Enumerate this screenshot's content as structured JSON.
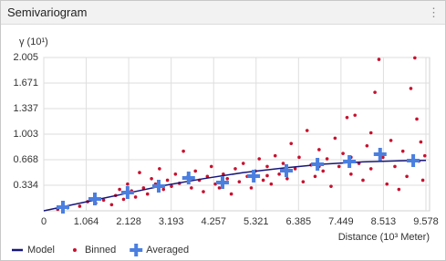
{
  "chart_data": {
    "type": "scatter",
    "title": "Semivariogram",
    "y_label": "γ (10¹)",
    "x_label": "Distance (10³ Meter)",
    "xlim": [
      0,
      9.578
    ],
    "ylim": [
      0,
      2.005
    ],
    "xticks": [
      0,
      1.064,
      2.128,
      3.193,
      4.257,
      5.321,
      6.385,
      7.449,
      8.513,
      9.578
    ],
    "yticks": [
      0.334,
      0.668,
      1.003,
      1.337,
      1.671,
      2.005
    ],
    "grid": true,
    "legend": "bottom-left",
    "series": [
      {
        "name": "Model",
        "kind": "line",
        "color": "#16167a",
        "x": [
          0,
          1,
          2,
          3,
          4,
          5,
          6,
          7,
          8,
          9,
          9.578
        ],
        "values": [
          0,
          0.11,
          0.22,
          0.33,
          0.42,
          0.5,
          0.56,
          0.61,
          0.64,
          0.655,
          0.66
        ]
      },
      {
        "name": "Binned",
        "kind": "dot",
        "color": "#c8102e",
        "x": [
          0.35,
          0.6,
          0.9,
          1.1,
          1.3,
          1.5,
          1.7,
          1.8,
          1.9,
          2.0,
          2.1,
          2.2,
          2.3,
          2.4,
          2.5,
          2.6,
          2.7,
          2.8,
          2.9,
          3.0,
          3.1,
          3.2,
          3.3,
          3.4,
          3.5,
          3.6,
          3.7,
          3.8,
          3.9,
          4.0,
          4.1,
          4.2,
          4.3,
          4.4,
          4.5,
          4.6,
          4.7,
          4.8,
          4.9,
          5.0,
          5.1,
          5.2,
          5.3,
          5.4,
          5.5,
          5.6,
          5.7,
          5.8,
          5.9,
          6.0,
          6.1,
          6.2,
          6.3,
          6.4,
          6.5,
          6.6,
          6.7,
          6.8,
          6.9,
          7.0,
          7.1,
          7.2,
          7.3,
          7.4,
          7.5,
          7.6,
          7.7,
          7.8,
          7.9,
          8.0,
          8.1,
          8.2,
          8.3,
          8.4,
          8.5,
          8.6,
          8.7,
          8.8,
          8.9,
          9.0,
          9.1,
          9.2,
          9.3,
          9.35,
          9.4,
          9.45,
          9.5,
          9.55,
          6.9,
          7.7,
          8.2,
          5.6
        ],
        "values": [
          0.02,
          0.04,
          0.06,
          0.12,
          0.1,
          0.14,
          0.08,
          0.2,
          0.28,
          0.15,
          0.35,
          0.26,
          0.18,
          0.5,
          0.3,
          0.22,
          0.42,
          0.35,
          0.55,
          0.28,
          0.4,
          0.32,
          0.48,
          0.36,
          0.78,
          0.44,
          0.3,
          0.52,
          0.4,
          0.25,
          0.45,
          0.58,
          0.35,
          0.3,
          0.48,
          0.42,
          0.22,
          0.55,
          0.38,
          0.62,
          0.45,
          0.3,
          0.52,
          0.68,
          0.4,
          0.58,
          0.35,
          0.72,
          0.48,
          0.62,
          0.42,
          0.88,
          0.55,
          0.7,
          0.38,
          1.05,
          0.6,
          0.45,
          0.8,
          0.52,
          0.68,
          0.32,
          0.95,
          0.58,
          0.75,
          1.22,
          0.48,
          1.25,
          0.62,
          0.4,
          0.85,
          0.55,
          1.55,
          1.98,
          0.7,
          0.35,
          0.92,
          0.58,
          0.28,
          0.78,
          0.45,
          1.6,
          2.0,
          1.2,
          0.65,
          0.9,
          0.4,
          0.72,
          0.58,
          0.7,
          1.02,
          0.46
        ]
      },
      {
        "name": "Averaged",
        "kind": "cross",
        "color": "#4a7fe0",
        "x": [
          0.48,
          1.28,
          2.1,
          2.88,
          3.63,
          4.48,
          5.26,
          6.08,
          6.86,
          7.66,
          8.43,
          9.26
        ],
        "values": [
          0.048,
          0.155,
          0.239,
          0.322,
          0.429,
          0.37,
          0.453,
          0.525,
          0.608,
          0.644,
          0.74,
          0.656
        ]
      }
    ]
  }
}
